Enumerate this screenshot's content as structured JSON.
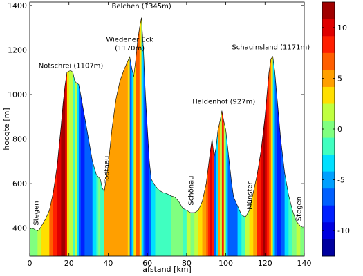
{
  "chart_data": {
    "type": "area",
    "xlabel": "afstand [km]",
    "ylabel": "hoogte [m]",
    "xlim": [
      0,
      140
    ],
    "ylim": [
      275,
      1415
    ],
    "x_ticks": [
      0,
      20,
      40,
      60,
      80,
      100,
      120,
      140
    ],
    "y_ticks": [
      400,
      600,
      800,
      1000,
      1200,
      1400
    ],
    "profile": {
      "x": [
        0,
        1,
        2,
        3,
        4,
        5,
        6,
        8,
        10,
        12,
        14,
        16,
        17,
        18,
        19,
        20,
        21,
        22,
        23,
        24,
        25,
        26,
        28,
        30,
        32,
        34,
        36,
        37,
        38,
        40,
        42,
        44,
        46,
        48,
        50,
        51,
        52,
        53,
        54,
        55,
        56,
        57,
        58,
        59,
        60,
        61,
        62,
        64,
        66,
        68,
        70,
        72,
        74,
        76,
        78,
        80,
        82,
        84,
        86,
        88,
        90,
        92,
        93,
        94,
        95,
        96,
        97,
        98,
        99,
        100,
        101,
        102,
        103,
        104,
        106,
        108,
        110,
        112,
        114,
        116,
        118,
        120,
        121,
        122,
        123,
        124,
        125,
        126,
        128,
        130,
        132,
        134,
        136,
        138,
        139,
        140
      ],
      "y": [
        395,
        400,
        397,
        392,
        388,
        395,
        410,
        440,
        480,
        560,
        680,
        860,
        960,
        1040,
        1100,
        1105,
        1107,
        1100,
        1060,
        1050,
        1045,
        1000,
        900,
        800,
        700,
        640,
        620,
        580,
        565,
        680,
        850,
        980,
        1060,
        1110,
        1150,
        1170,
        1120,
        1080,
        1150,
        1240,
        1300,
        1345,
        1200,
        1000,
        850,
        700,
        620,
        590,
        570,
        560,
        555,
        545,
        540,
        520,
        490,
        480,
        470,
        470,
        480,
        520,
        600,
        740,
        800,
        720,
        760,
        840,
        880,
        927,
        880,
        840,
        760,
        680,
        600,
        540,
        500,
        460,
        450,
        480,
        560,
        640,
        750,
        900,
        1000,
        1100,
        1160,
        1171,
        1100,
        1000,
        800,
        650,
        550,
        480,
        430,
        410,
        405,
        405
      ]
    },
    "colorbar": {
      "min": -12.5,
      "max": 12.5,
      "ticks": [
        -10,
        -5,
        0,
        5,
        10
      ],
      "colors": [
        "#00009F",
        "#0000DF",
        "#0020FF",
        "#0060FF",
        "#00A0FF",
        "#00E0FF",
        "#40FFC0",
        "#80FF80",
        "#C0FF40",
        "#FFDF00",
        "#FF9F00",
        "#FF5F00",
        "#FF1F00",
        "#DF0000",
        "#A00000"
      ]
    },
    "color_bands": [
      {
        "x0": 0,
        "x1": 4,
        "v": 0
      },
      {
        "x0": 4,
        "x1": 6,
        "v": 2
      },
      {
        "x0": 6,
        "x1": 8,
        "v": 3
      },
      {
        "x0": 8,
        "x1": 10,
        "v": 4
      },
      {
        "x0": 10,
        "x1": 12,
        "v": 6
      },
      {
        "x0": 12,
        "x1": 14,
        "v": 8
      },
      {
        "x0": 14,
        "x1": 16,
        "v": 10
      },
      {
        "x0": 16,
        "x1": 18,
        "v": 11
      },
      {
        "x0": 18,
        "x1": 19,
        "v": 10
      },
      {
        "x0": 19,
        "x1": 20,
        "v": 3
      },
      {
        "x0": 20,
        "x1": 22,
        "v": 1
      },
      {
        "x0": 22,
        "x1": 23,
        "v": -2
      },
      {
        "x0": 23,
        "x1": 24,
        "v": 1
      },
      {
        "x0": 24,
        "x1": 25,
        "v": -4
      },
      {
        "x0": 25,
        "x1": 26,
        "v": -6
      },
      {
        "x0": 26,
        "x1": 28,
        "v": -8
      },
      {
        "x0": 28,
        "x1": 30,
        "v": -7
      },
      {
        "x0": 30,
        "x1": 32,
        "v": -6
      },
      {
        "x0": 32,
        "x1": 34,
        "v": -4
      },
      {
        "x0": 34,
        "x1": 35,
        "v": -2
      },
      {
        "x0": 35,
        "x1": 36,
        "v": 0
      },
      {
        "x0": 36,
        "x1": 38,
        "v": -2
      },
      {
        "x0": 38,
        "x1": 50,
        "v": 5
      },
      {
        "x0": 50,
        "x1": 51,
        "v": 4
      },
      {
        "x0": 51,
        "x1": 52,
        "v": -6
      },
      {
        "x0": 52,
        "x1": 53,
        "v": -3
      },
      {
        "x0": 53,
        "x1": 54,
        "v": 3
      },
      {
        "x0": 54,
        "x1": 56,
        "v": 6
      },
      {
        "x0": 56,
        "x1": 57,
        "v": 3
      },
      {
        "x0": 57,
        "x1": 58,
        "v": -4
      },
      {
        "x0": 58,
        "x1": 59,
        "v": -6
      },
      {
        "x0": 59,
        "x1": 61,
        "v": -8
      },
      {
        "x0": 61,
        "x1": 62,
        "v": -6
      },
      {
        "x0": 62,
        "x1": 64,
        "v": -4
      },
      {
        "x0": 64,
        "x1": 66,
        "v": -2
      },
      {
        "x0": 66,
        "x1": 72,
        "v": -1
      },
      {
        "x0": 72,
        "x1": 78,
        "v": 0
      },
      {
        "x0": 78,
        "x1": 80,
        "v": -2
      },
      {
        "x0": 80,
        "x1": 82,
        "v": 1
      },
      {
        "x0": 82,
        "x1": 84,
        "v": 0
      },
      {
        "x0": 84,
        "x1": 86,
        "v": 2
      },
      {
        "x0": 86,
        "x1": 88,
        "v": 3
      },
      {
        "x0": 88,
        "x1": 90,
        "v": 5
      },
      {
        "x0": 90,
        "x1": 91,
        "v": 6
      },
      {
        "x0": 91,
        "x1": 92,
        "v": 8
      },
      {
        "x0": 92,
        "x1": 93,
        "v": 10
      },
      {
        "x0": 93,
        "x1": 94,
        "v": 8
      },
      {
        "x0": 94,
        "x1": 95,
        "v": -6
      },
      {
        "x0": 95,
        "x1": 96,
        "v": -4
      },
      {
        "x0": 96,
        "x1": 97,
        "v": 5
      },
      {
        "x0": 97,
        "x1": 98,
        "v": 2
      },
      {
        "x0": 98,
        "x1": 99,
        "v": 8
      },
      {
        "x0": 99,
        "x1": 100,
        "v": 1
      },
      {
        "x0": 100,
        "x1": 101,
        "v": -4
      },
      {
        "x0": 101,
        "x1": 102,
        "v": -6
      },
      {
        "x0": 102,
        "x1": 104,
        "v": -7
      },
      {
        "x0": 104,
        "x1": 106,
        "v": -6
      },
      {
        "x0": 106,
        "x1": 108,
        "v": -4
      },
      {
        "x0": 108,
        "x1": 110,
        "v": -2
      },
      {
        "x0": 110,
        "x1": 112,
        "v": 1
      },
      {
        "x0": 112,
        "x1": 114,
        "v": 3
      },
      {
        "x0": 114,
        "x1": 116,
        "v": 5
      },
      {
        "x0": 116,
        "x1": 118,
        "v": 8
      },
      {
        "x0": 118,
        "x1": 119,
        "v": 10
      },
      {
        "x0": 119,
        "x1": 120,
        "v": 12
      },
      {
        "x0": 120,
        "x1": 121,
        "v": 10
      },
      {
        "x0": 121,
        "x1": 122,
        "v": 8
      },
      {
        "x0": 122,
        "x1": 123,
        "v": 6
      },
      {
        "x0": 123,
        "x1": 124,
        "v": 3
      },
      {
        "x0": 124,
        "x1": 125,
        "v": -4
      },
      {
        "x0": 125,
        "x1": 126,
        "v": -6
      },
      {
        "x0": 126,
        "x1": 128,
        "v": -8
      },
      {
        "x0": 128,
        "x1": 130,
        "v": -6
      },
      {
        "x0": 130,
        "x1": 132,
        "v": -4
      },
      {
        "x0": 132,
        "x1": 134,
        "v": -2
      },
      {
        "x0": 134,
        "x1": 136,
        "v": 0
      },
      {
        "x0": 136,
        "x1": 138,
        "v": 2
      },
      {
        "x0": 138,
        "x1": 140,
        "v": 0
      }
    ],
    "annotations": [
      {
        "text": "Notschrei (1107m)",
        "x": 21,
        "y": 1107
      },
      {
        "text": "Wiedener Eck",
        "x": 51,
        "y": 1225
      },
      {
        "text": "(1170m)",
        "x": 51,
        "y": 1185
      },
      {
        "text": "Belchen (1345m)",
        "x": 57,
        "y": 1375
      },
      {
        "text": "Haldenhof (927m)",
        "x": 99,
        "y": 945
      },
      {
        "text": "Schauinsland (1171m)",
        "x": 123,
        "y": 1190
      }
    ],
    "place_labels": [
      {
        "text": "Stegen",
        "x": 3,
        "y": 400
      },
      {
        "text": "Todtnau",
        "x": 39,
        "y": 590
      },
      {
        "text": "Schönau",
        "x": 82,
        "y": 490
      },
      {
        "text": "Münster",
        "x": 112,
        "y": 470
      },
      {
        "text": "Stegen",
        "x": 137,
        "y": 420
      }
    ]
  }
}
